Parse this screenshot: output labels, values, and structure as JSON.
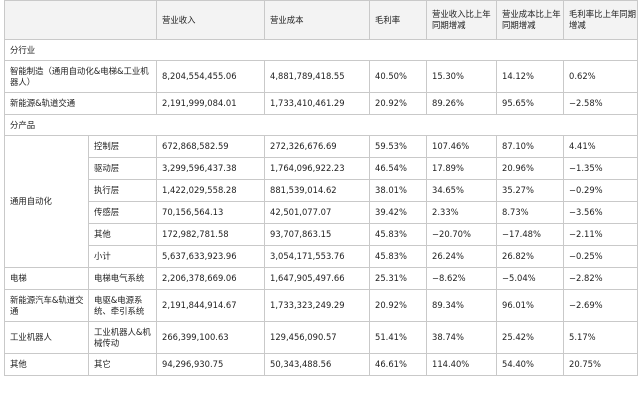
{
  "headers": [
    "",
    "",
    "营业收入",
    "营业成本",
    "毛利率",
    "营业收入比上年同期增减",
    "营业成本比上年同期增减",
    "毛利率比上年同期增减"
  ],
  "sections": {
    "industry": "分行业",
    "product": "分产品"
  },
  "industry_rows": [
    {
      "name": "智能制造（通用自动化&电梯&工业机器人）",
      "revenue": "8,204,554,455.06",
      "cost": "4,881,789,418.55",
      "margin": "40.50%",
      "rev_chg": "15.30%",
      "cost_chg": "14.12%",
      "margin_chg": "0.62%"
    },
    {
      "name": "新能源&轨道交通",
      "revenue": "2,191,999,084.01",
      "cost": "1,733,410,461.29",
      "margin": "20.92%",
      "rev_chg": "89.26%",
      "cost_chg": "95.65%",
      "margin_chg": "−2.58%"
    }
  ],
  "automation_group": "通用自动化",
  "automation_rows": [
    {
      "name": "控制层",
      "revenue": "672,868,582.59",
      "cost": "272,326,676.69",
      "margin": "59.53%",
      "rev_chg": "107.46%",
      "cost_chg": "87.10%",
      "margin_chg": "4.41%"
    },
    {
      "name": "驱动层",
      "revenue": "3,299,596,437.38",
      "cost": "1,764,096,922.23",
      "margin": "46.54%",
      "rev_chg": "17.89%",
      "cost_chg": "20.96%",
      "margin_chg": "−1.35%"
    },
    {
      "name": "执行层",
      "revenue": "1,422,029,558.28",
      "cost": "881,539,014.62",
      "margin": "38.01%",
      "rev_chg": "34.65%",
      "cost_chg": "35.27%",
      "margin_chg": "−0.29%"
    },
    {
      "name": "传感层",
      "revenue": "70,156,564.13",
      "cost": "42,501,077.07",
      "margin": "39.42%",
      "rev_chg": "2.33%",
      "cost_chg": "8.73%",
      "margin_chg": "−3.56%"
    },
    {
      "name": "其他",
      "revenue": "172,982,781.58",
      "cost": "93,707,863.15",
      "margin": "45.83%",
      "rev_chg": "−20.70%",
      "cost_chg": "−17.48%",
      "margin_chg": "−2.11%"
    },
    {
      "name": "小计",
      "revenue": "5,637,633,923.96",
      "cost": "3,054,171,553.76",
      "margin": "45.83%",
      "rev_chg": "26.24%",
      "cost_chg": "26.82%",
      "margin_chg": "−0.25%"
    }
  ],
  "other_rows": [
    {
      "group": "电梯",
      "name": "电梯电气系统",
      "revenue": "2,206,378,669.06",
      "cost": "1,647,905,497.66",
      "margin": "25.31%",
      "rev_chg": "−8.62%",
      "cost_chg": "−5.04%",
      "margin_chg": "−2.82%"
    },
    {
      "group": "新能源汽车&轨道交通",
      "name": "电驱&电源系统、牵引系统",
      "revenue": "2,191,844,914.67",
      "cost": "1,733,323,249.29",
      "margin": "20.92%",
      "rev_chg": "89.34%",
      "cost_chg": "96.01%",
      "margin_chg": "−2.69%"
    },
    {
      "group": "工业机器人",
      "name": "工业机器人&机械传动",
      "revenue": "266,399,100.63",
      "cost": "129,456,090.57",
      "margin": "51.41%",
      "rev_chg": "38.74%",
      "cost_chg": "25.42%",
      "margin_chg": "5.17%"
    },
    {
      "group": "其他",
      "name": "其它",
      "revenue": "94,296,930.75",
      "cost": "50,343,488.56",
      "margin": "46.61%",
      "rev_chg": "114.40%",
      "cost_chg": "54.40%",
      "margin_chg": "20.75%"
    }
  ]
}
